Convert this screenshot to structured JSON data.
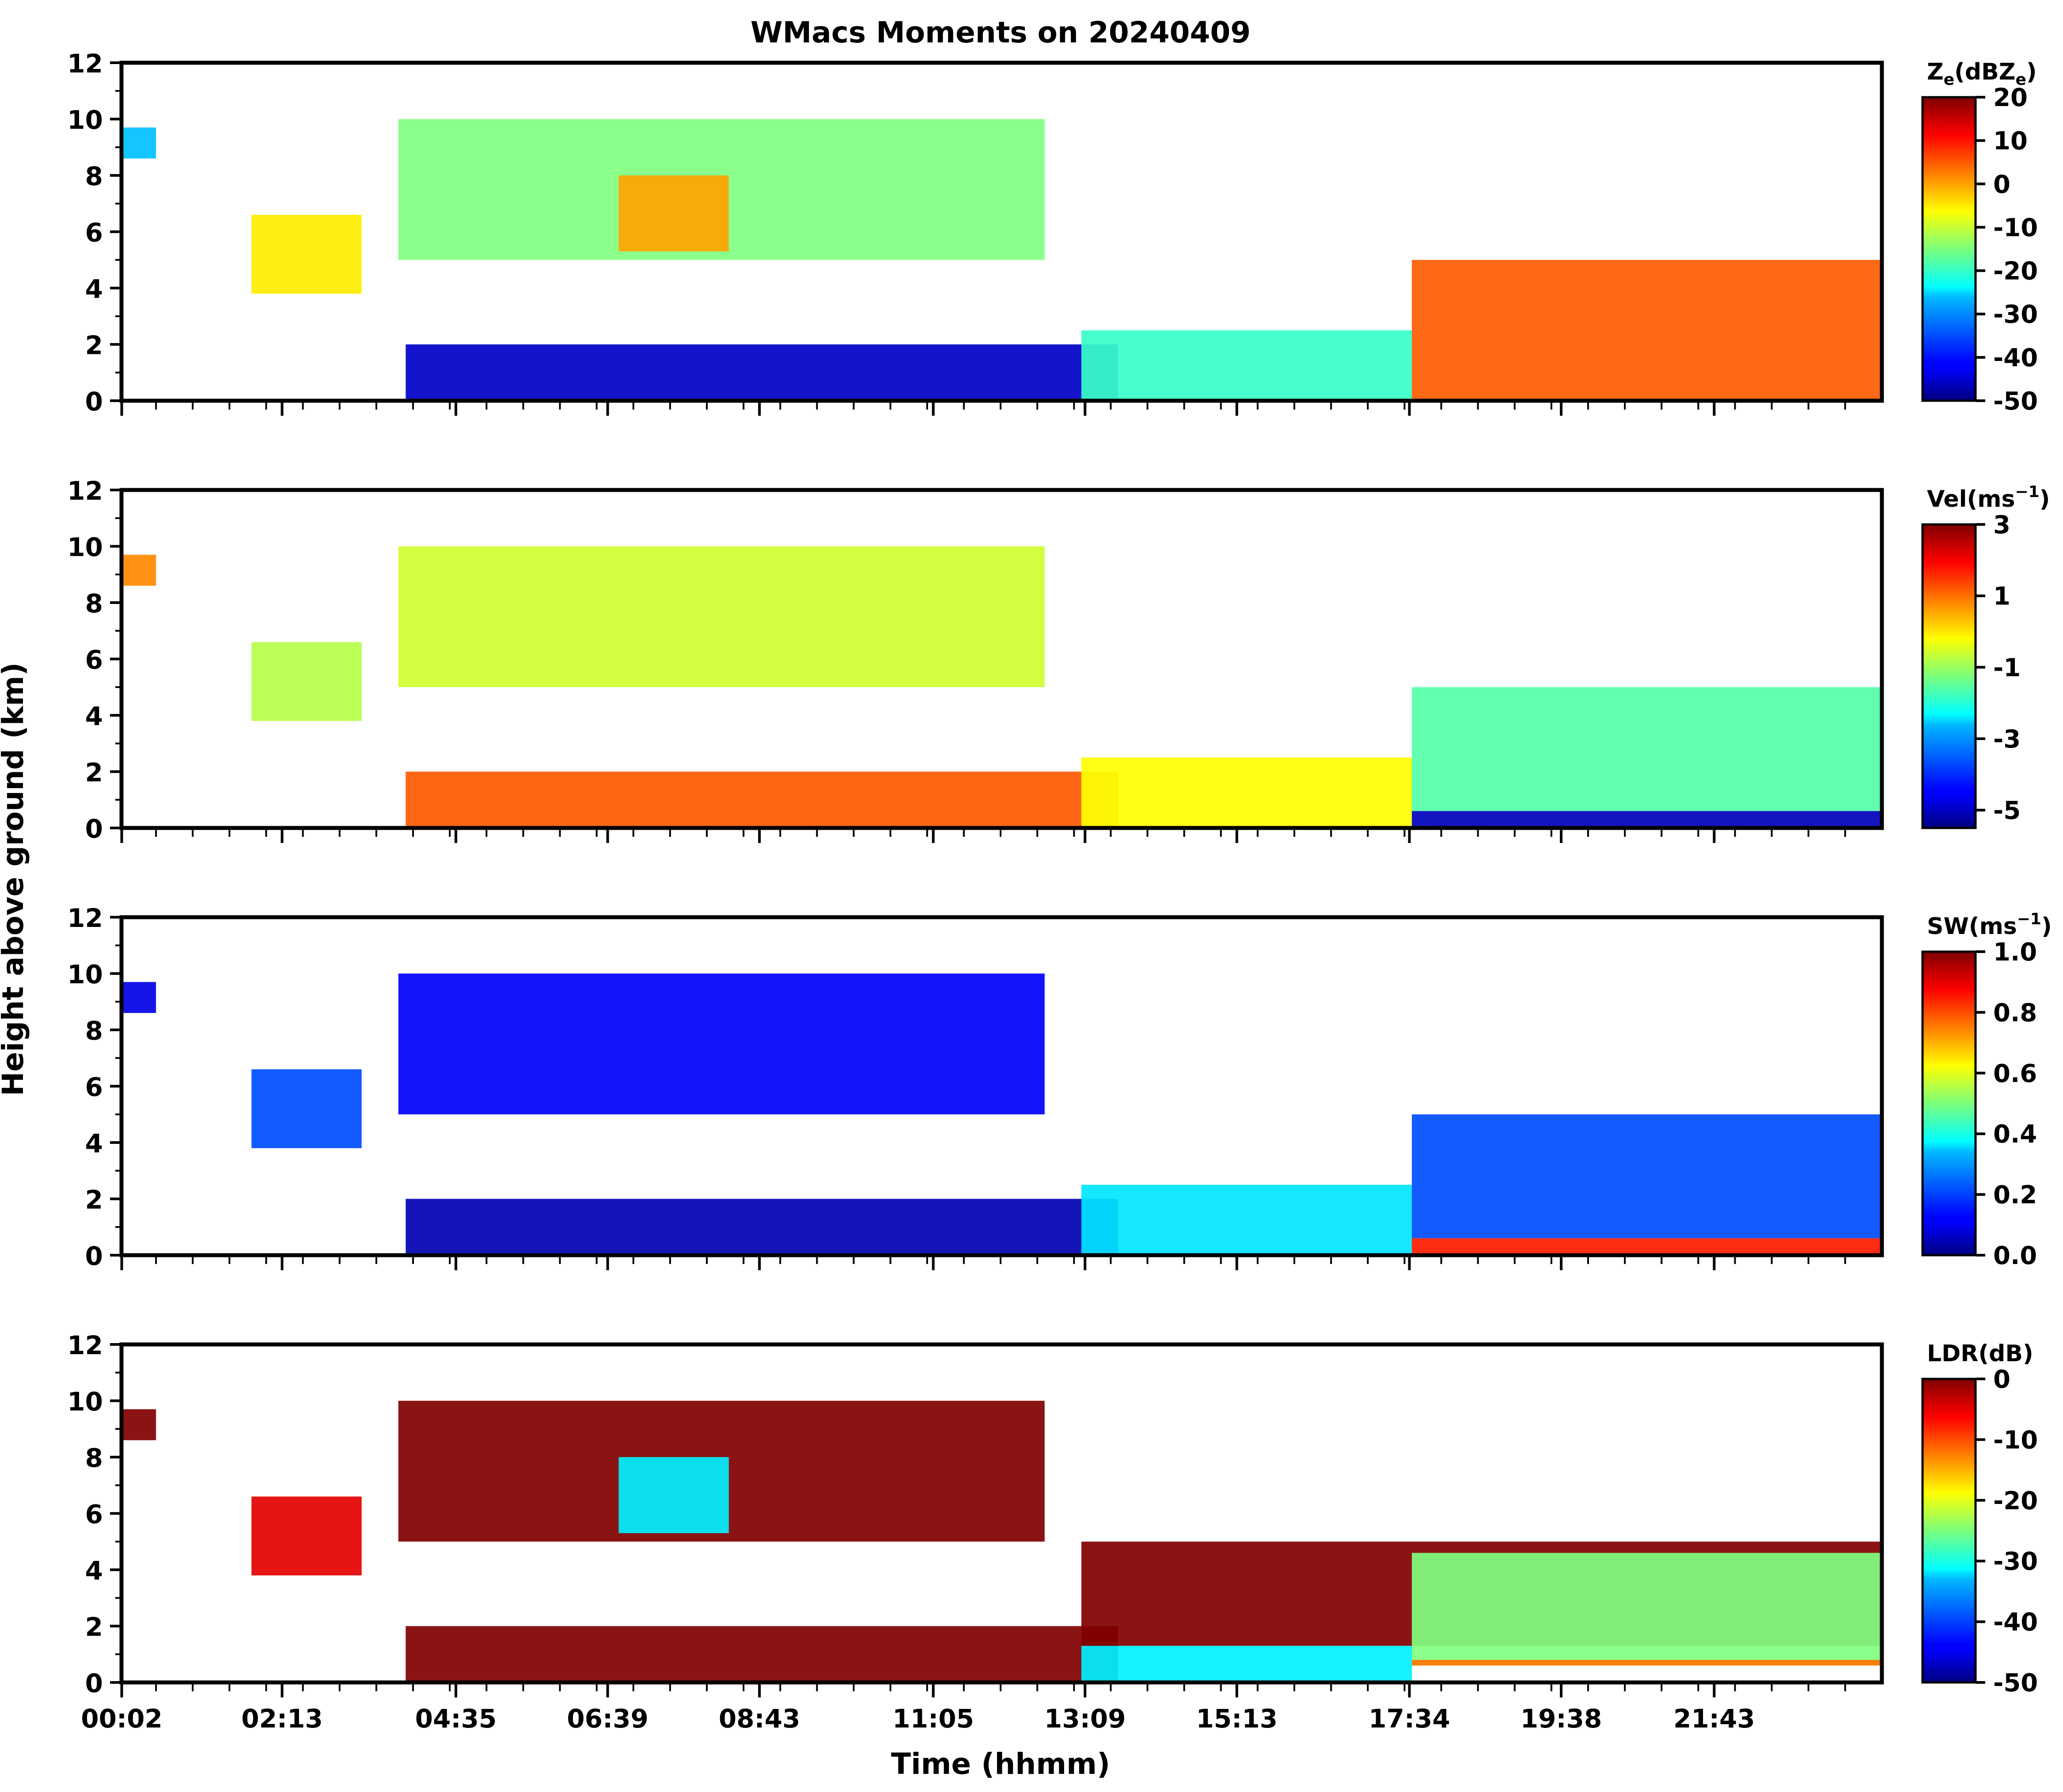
{
  "figure_title": "WMacs Moments on 20240409",
  "shared_xlabel": "Time (hhmm)",
  "shared_ylabel": "Height above ground (km)",
  "chart_data": [
    {
      "type": "heatmap",
      "panel": "Reflectivity",
      "colorbar_label_base": "Z",
      "colorbar_label_sub": "e",
      "colorbar_label_rest": "(dBZ",
      "colorbar_label_sub2": "e",
      "colorbar_label_end": ")",
      "colormap": "jet",
      "vmin": -50,
      "vmax": 20,
      "colorbar_ticks": [
        -50,
        -40,
        -30,
        -20,
        -10,
        0,
        10,
        20
      ],
      "colorbar_ticklabels": [
        "-50",
        "-40",
        "-30",
        "-20",
        "-10",
        "0",
        "10",
        "20"
      ],
      "ylim": [
        0,
        12
      ],
      "yticks": [
        "0",
        "2",
        "4",
        "6",
        "8",
        "10",
        "12"
      ],
      "features": [
        {
          "name": "early high cloud",
          "t": [
            0.0,
            0.5
          ],
          "z": [
            8.6,
            9.7
          ],
          "value": -28
        },
        {
          "name": "mid-level cloud 02-04h",
          "t": [
            1.8,
            3.3
          ],
          "z": [
            3.8,
            6.6
          ],
          "value": -5
        },
        {
          "name": "upper ice cloud 04-13h",
          "t": [
            3.8,
            12.6
          ],
          "z": [
            5.0,
            10.0
          ],
          "value": -15
        },
        {
          "name": "core 06-08h",
          "t": [
            6.8,
            8.3
          ],
          "z": [
            5.3,
            8.0
          ],
          "value": 0
        },
        {
          "name": "boundary layer clutter",
          "t": [
            3.9,
            13.6
          ],
          "z": [
            0,
            2.0
          ],
          "value": -45
        },
        {
          "name": "low cloud 13-17h",
          "t": [
            13.1,
            17.6
          ],
          "z": [
            0,
            2.5
          ],
          "value": -20
        },
        {
          "name": "precipitation 17h-24h",
          "t": [
            17.6,
            24.0
          ],
          "z": [
            0,
            5.0
          ],
          "value": 5
        }
      ]
    },
    {
      "type": "heatmap",
      "panel": "Doppler velocity",
      "colorbar_label": "Vel(ms",
      "colorbar_label_sup": "−1",
      "colorbar_label_end": ")",
      "colormap": "jet",
      "vmin": -5.5,
      "vmax": 3,
      "colorbar_ticks": [
        -5,
        -3,
        -1,
        1,
        3
      ],
      "colorbar_ticklabels": [
        "-5",
        "-3",
        "-1",
        "1",
        "3"
      ],
      "ylim": [
        0,
        12
      ],
      "yticks": [
        "0",
        "2",
        "4",
        "6",
        "8",
        "10",
        "12"
      ],
      "features": [
        {
          "name": "early high cloud",
          "t": [
            0.0,
            0.5
          ],
          "z": [
            8.6,
            9.7
          ],
          "value": 0.8
        },
        {
          "name": "mid-level cloud 02-04h",
          "t": [
            1.8,
            3.3
          ],
          "z": [
            3.8,
            6.6
          ],
          "value": -0.8
        },
        {
          "name": "upper ice cloud 04-13h",
          "t": [
            3.8,
            12.6
          ],
          "z": [
            5.0,
            10.0
          ],
          "value": -0.6
        },
        {
          "name": "boundary layer clutter",
          "t": [
            3.9,
            13.6
          ],
          "z": [
            0,
            2.0
          ],
          "value": 1.2
        },
        {
          "name": "low cloud 13-17h",
          "t": [
            13.1,
            17.6
          ],
          "z": [
            0,
            2.5
          ],
          "value": -0.2
        },
        {
          "name": "precipitation 17h-24h",
          "t": [
            17.6,
            24.0
          ],
          "z": [
            0.6,
            5.0
          ],
          "value": -1.6
        },
        {
          "name": "rain layer 17h-24h",
          "t": [
            17.6,
            24.0
          ],
          "z": [
            0,
            0.6
          ],
          "value": -5.0
        }
      ]
    },
    {
      "type": "heatmap",
      "panel": "Spectral width",
      "colorbar_label": "SW(ms",
      "colorbar_label_sup": "−1",
      "colorbar_label_end": ")",
      "colormap": "jet",
      "vmin": 0.0,
      "vmax": 1.0,
      "colorbar_ticks": [
        0.0,
        0.2,
        0.4,
        0.6,
        0.8,
        1.0
      ],
      "colorbar_ticklabels": [
        "0.0",
        "0.2",
        "0.4",
        "0.6",
        "0.8",
        "1.0"
      ],
      "ylim": [
        0,
        12
      ],
      "yticks": [
        "0",
        "2",
        "4",
        "6",
        "8",
        "10",
        "12"
      ],
      "features": [
        {
          "name": "early high cloud",
          "t": [
            0.0,
            0.5
          ],
          "z": [
            8.6,
            9.7
          ],
          "value": 0.1
        },
        {
          "name": "mid-level cloud 02-04h",
          "t": [
            1.8,
            3.3
          ],
          "z": [
            3.8,
            6.6
          ],
          "value": 0.2
        },
        {
          "name": "upper ice cloud 04-13h",
          "t": [
            3.8,
            12.6
          ],
          "z": [
            5.0,
            10.0
          ],
          "value": 0.12
        },
        {
          "name": "boundary layer clutter",
          "t": [
            3.9,
            13.6
          ],
          "z": [
            0,
            2.0
          ],
          "value": 0.05
        },
        {
          "name": "low cloud 13-17h",
          "t": [
            13.1,
            17.6
          ],
          "z": [
            0,
            2.5
          ],
          "value": 0.35
        },
        {
          "name": "precipitation 17h-24h",
          "t": [
            17.6,
            24.0
          ],
          "z": [
            0.6,
            5.0
          ],
          "value": 0.2
        },
        {
          "name": "rain layer 17h-24h",
          "t": [
            17.6,
            24.0
          ],
          "z": [
            0,
            0.6
          ],
          "value": 0.85
        }
      ]
    },
    {
      "type": "heatmap",
      "panel": "Linear depolarization ratio",
      "colorbar_label": "LDR(dB)",
      "colormap": "jet",
      "vmin": -50,
      "vmax": 0,
      "colorbar_ticks": [
        -50,
        -40,
        -30,
        -20,
        -10,
        0
      ],
      "colorbar_ticklabels": [
        "-50",
        "-40",
        "-30",
        "-20",
        "-10",
        "0"
      ],
      "ylim": [
        0,
        12
      ],
      "yticks": [
        "0",
        "2",
        "4",
        "6",
        "8",
        "10",
        "12"
      ],
      "features": [
        {
          "name": "early high cloud",
          "t": [
            0.0,
            0.5
          ],
          "z": [
            8.6,
            9.7
          ],
          "value": 0
        },
        {
          "name": "mid-level cloud 02-04h",
          "t": [
            1.8,
            3.3
          ],
          "z": [
            3.8,
            6.6
          ],
          "value": -5
        },
        {
          "name": "upper ice cloud 04-13h",
          "t": [
            3.8,
            12.6
          ],
          "z": [
            5.0,
            10.0
          ],
          "value": 0
        },
        {
          "name": "core 06-08h",
          "t": [
            6.8,
            8.3
          ],
          "z": [
            5.3,
            8.0
          ],
          "value": -32
        },
        {
          "name": "boundary layer clutter",
          "t": [
            3.9,
            13.6
          ],
          "z": [
            0,
            2.0
          ],
          "value": 0
        },
        {
          "name": "low cloud 13-17h",
          "t": [
            13.1,
            17.6
          ],
          "z": [
            0,
            1.3
          ],
          "value": -32
        },
        {
          "name": "cloud top 13-24h",
          "t": [
            13.1,
            24.0
          ],
          "z": [
            1.3,
            5.0
          ],
          "value": 0
        },
        {
          "name": "precipitation 17h-24h",
          "t": [
            17.6,
            24.0
          ],
          "z": [
            0.6,
            4.6
          ],
          "value": -25
        },
        {
          "name": "melting layer 17h-24h",
          "t": [
            17.6,
            24.0
          ],
          "z": [
            0.6,
            0.8
          ],
          "value": -12
        }
      ]
    }
  ],
  "xaxis": {
    "xlim_hours": [
      0.03,
      24.0
    ],
    "major_ticks_hours": [
      0.0333,
      2.2167,
      4.5833,
      6.65,
      8.7167,
      11.0833,
      13.15,
      15.2167,
      17.5667,
      19.6333,
      21.7167
    ],
    "major_ticklabels": [
      "00:02",
      "02:13",
      "04:35",
      "06:39",
      "08:43",
      "11:05",
      "13:09",
      "15:13",
      "17:34",
      "19:38",
      "21:43"
    ]
  }
}
